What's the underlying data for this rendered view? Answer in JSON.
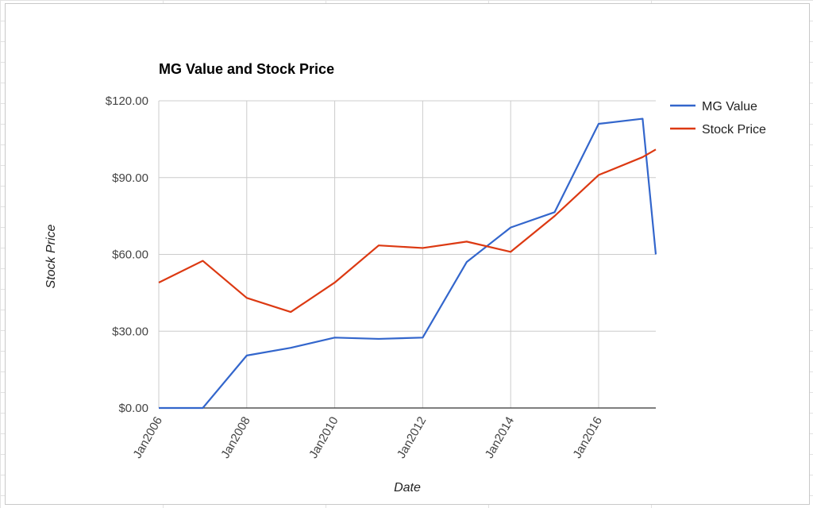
{
  "chart_data": {
    "type": "line",
    "title": "MG Value and Stock Price",
    "xlabel": "Date",
    "ylabel": "Stock Price",
    "x": [
      2006,
      2007,
      2008,
      2009,
      2010,
      2011,
      2012,
      2013,
      2014,
      2015,
      2016,
      2017,
      2017.3
    ],
    "xlim": [
      2006,
      2017.3
    ],
    "x_ticks": [
      {
        "value": 2006,
        "label": "Jan2006"
      },
      {
        "value": 2008,
        "label": "Jan2008"
      },
      {
        "value": 2010,
        "label": "Jan2010"
      },
      {
        "value": 2012,
        "label": "Jan2012"
      },
      {
        "value": 2014,
        "label": "Jan2014"
      },
      {
        "value": 2016,
        "label": "Jan2016"
      }
    ],
    "ylim": [
      0,
      120
    ],
    "y_ticks": [
      {
        "value": 0,
        "label": "$0.00"
      },
      {
        "value": 30,
        "label": "$30.00"
      },
      {
        "value": 60,
        "label": "$60.00"
      },
      {
        "value": 90,
        "label": "$90.00"
      },
      {
        "value": 120,
        "label": "$120.00"
      }
    ],
    "grid": true,
    "legend_position": "right",
    "series": [
      {
        "name": "MG Value",
        "color": "#3366cc",
        "values": [
          0,
          0,
          20.5,
          23.5,
          27.5,
          27,
          27.5,
          57,
          70.5,
          76.5,
          111,
          113,
          60
        ]
      },
      {
        "name": "Stock Price",
        "color": "#dc3912",
        "values": [
          49,
          57.5,
          43,
          37.5,
          49,
          63.5,
          62.5,
          65,
          61,
          75,
          91,
          98,
          101
        ]
      }
    ]
  }
}
